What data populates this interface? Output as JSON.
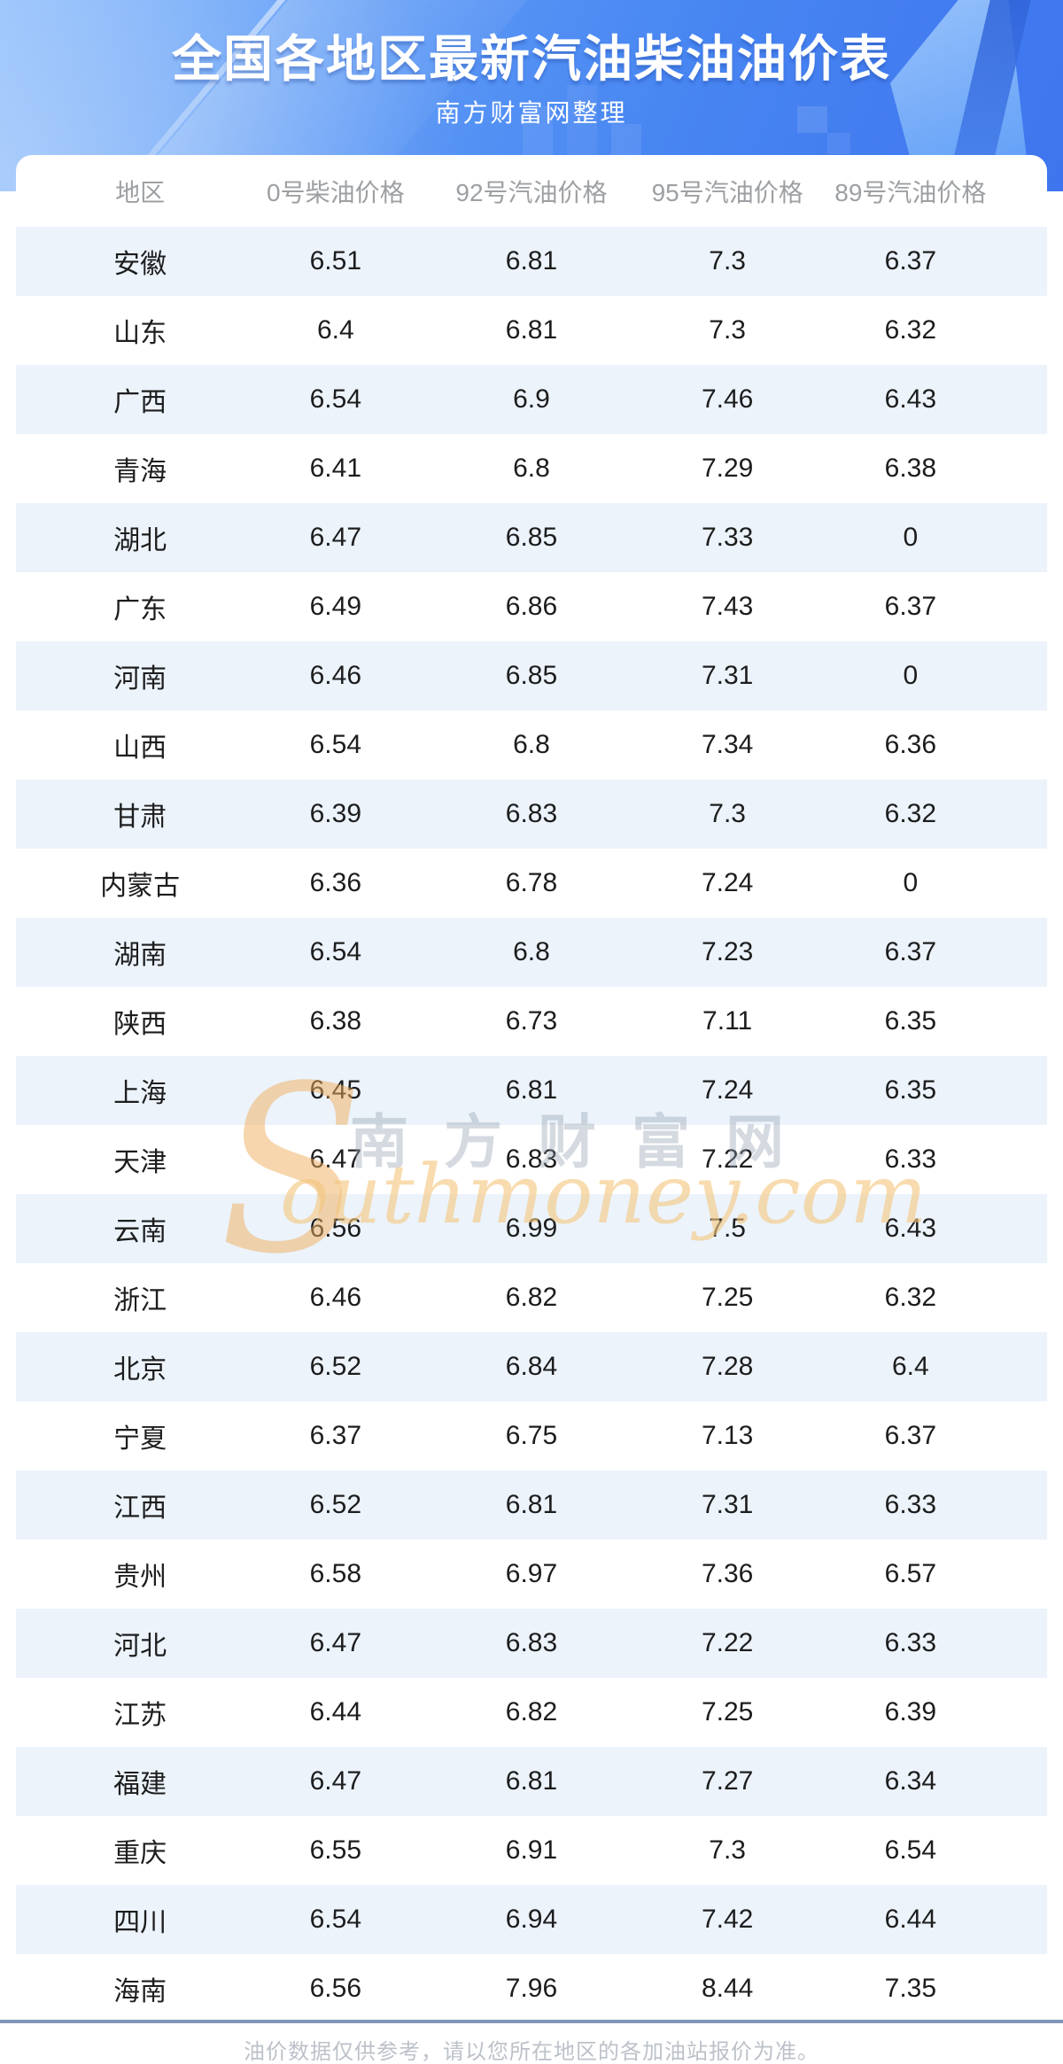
{
  "header": {
    "title": "全国各地区最新汽油柴油油价表",
    "subtitle": "南方财富网整理"
  },
  "chart_data": {
    "type": "table",
    "title": "全国各地区最新汽油柴油油价表",
    "columns": [
      "地区",
      "0号柴油价格",
      "92号汽油价格",
      "95号汽油价格",
      "89号汽油价格"
    ],
    "rows": [
      [
        "安徽",
        "6.51",
        "6.81",
        "7.3",
        "6.37"
      ],
      [
        "山东",
        "6.4",
        "6.81",
        "7.3",
        "6.32"
      ],
      [
        "广西",
        "6.54",
        "6.9",
        "7.46",
        "6.43"
      ],
      [
        "青海",
        "6.41",
        "6.8",
        "7.29",
        "6.38"
      ],
      [
        "湖北",
        "6.47",
        "6.85",
        "7.33",
        "0"
      ],
      [
        "广东",
        "6.49",
        "6.86",
        "7.43",
        "6.37"
      ],
      [
        "河南",
        "6.46",
        "6.85",
        "7.31",
        "0"
      ],
      [
        "山西",
        "6.54",
        "6.8",
        "7.34",
        "6.36"
      ],
      [
        "甘肃",
        "6.39",
        "6.83",
        "7.3",
        "6.32"
      ],
      [
        "内蒙古",
        "6.36",
        "6.78",
        "7.24",
        "0"
      ],
      [
        "湖南",
        "6.54",
        "6.8",
        "7.23",
        "6.37"
      ],
      [
        "陕西",
        "6.38",
        "6.73",
        "7.11",
        "6.35"
      ],
      [
        "上海",
        "6.45",
        "6.81",
        "7.24",
        "6.35"
      ],
      [
        "天津",
        "6.47",
        "6.83",
        "7.22",
        "6.33"
      ],
      [
        "云南",
        "6.56",
        "6.99",
        "7.5",
        "6.43"
      ],
      [
        "浙江",
        "6.46",
        "6.82",
        "7.25",
        "6.32"
      ],
      [
        "北京",
        "6.52",
        "6.84",
        "7.28",
        "6.4"
      ],
      [
        "宁夏",
        "6.37",
        "6.75",
        "7.13",
        "6.37"
      ],
      [
        "江西",
        "6.52",
        "6.81",
        "7.31",
        "6.33"
      ],
      [
        "贵州",
        "6.58",
        "6.97",
        "7.36",
        "6.57"
      ],
      [
        "河北",
        "6.47",
        "6.83",
        "7.22",
        "6.33"
      ],
      [
        "江苏",
        "6.44",
        "6.82",
        "7.25",
        "6.39"
      ],
      [
        "福建",
        "6.47",
        "6.81",
        "7.27",
        "6.34"
      ],
      [
        "重庆",
        "6.55",
        "6.91",
        "7.3",
        "6.54"
      ],
      [
        "四川",
        "6.54",
        "6.94",
        "7.42",
        "6.44"
      ],
      [
        "海南",
        "6.56",
        "7.96",
        "8.44",
        "7.35"
      ]
    ],
    "stripe_rows": "odd",
    "legend_position": "none",
    "grid": false
  },
  "watermark": {
    "initial": "S",
    "cn": "南方财富网",
    "en": "outhmoney.com"
  },
  "footer": {
    "note": "油价数据仅供参考，请以您所在地区的各加油站报价为准。"
  },
  "colors": {
    "hero_gradient_start": "#8CBCFB",
    "hero_gradient_end": "#3E75EE",
    "stripe": "#ECF3FB",
    "column_header_text": "#9DA0A3",
    "cell_text": "#1D1D1D",
    "divider": "#7E97B7",
    "footer_text": "#BCC1C9",
    "watermark_gray": "#96A2B4",
    "watermark_orange": "#F0AE5C"
  }
}
